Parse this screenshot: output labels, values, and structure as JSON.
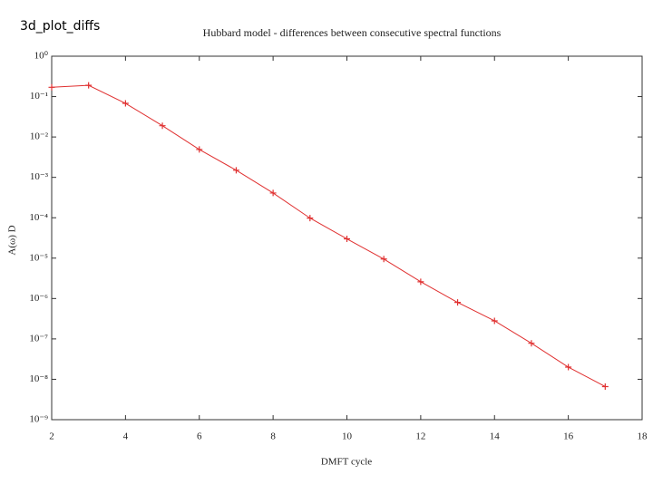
{
  "slide_title": "3d_plot_diffs",
  "chart_data": {
    "type": "line",
    "title": "Hubbard model - differences between consecutive spectral functions",
    "xlabel": "DMFT cycle",
    "ylabel": "A(ω) D",
    "x": [
      2,
      3,
      4,
      5,
      6,
      7,
      8,
      9,
      10,
      11,
      12,
      13,
      14,
      15,
      16,
      17
    ],
    "series": [
      {
        "color": "#e03030",
        "values": [
          0.17,
          0.19,
          0.068,
          0.019,
          0.0049,
          0.0015,
          0.00041,
          9.8e-05,
          3e-05,
          9.5e-06,
          2.6e-06,
          8e-07,
          2.8e-07,
          7.8e-08,
          2e-08,
          6.6e-09
        ]
      }
    ],
    "xlim": [
      2,
      18
    ],
    "xticks": [
      2,
      4,
      6,
      8,
      10,
      12,
      14,
      16,
      18
    ],
    "ylim": [
      1e-09,
      1
    ],
    "log_y": true,
    "yticks": [
      {
        "value": 1,
        "label": "10⁰"
      },
      {
        "value": 0.1,
        "label": "10⁻¹"
      },
      {
        "value": 0.01,
        "label": "10⁻²"
      },
      {
        "value": 0.001,
        "label": "10⁻³"
      },
      {
        "value": 0.0001,
        "label": "10⁻⁴"
      },
      {
        "value": 1e-05,
        "label": "10⁻⁵"
      },
      {
        "value": 1e-06,
        "label": "10⁻⁶"
      },
      {
        "value": 1e-07,
        "label": "10⁻⁷"
      },
      {
        "value": 1e-08,
        "label": "10⁻⁸"
      },
      {
        "value": 1e-09,
        "label": "10⁻⁹"
      }
    ],
    "grid": false
  }
}
